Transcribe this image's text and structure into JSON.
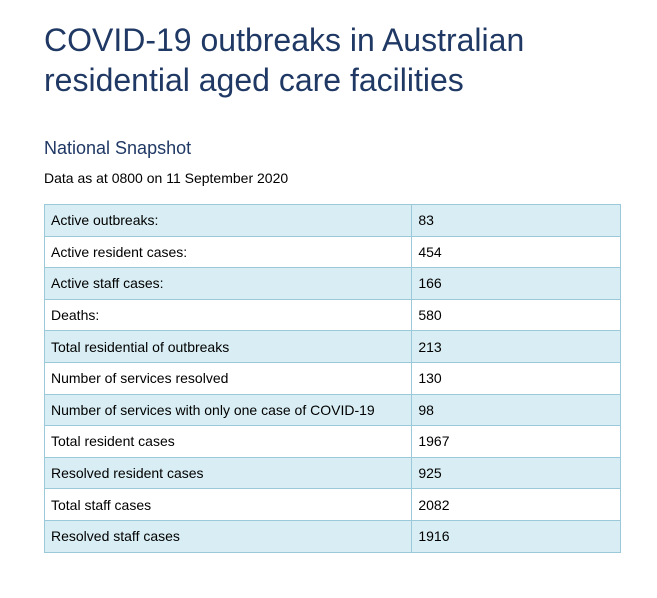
{
  "title": "COVID-19 outbreaks in Australian residential aged care facilities",
  "subtitle": "National Snapshot",
  "as_of": "Data as at 0800 on 11 September 2020",
  "rows": [
    {
      "label": "Active outbreaks:",
      "value": "83"
    },
    {
      "label": "Active resident cases:",
      "value": "454"
    },
    {
      "label": "Active staff cases:",
      "value": "166"
    },
    {
      "label": "Deaths:",
      "value": "580"
    },
    {
      "label": "Total residential of outbreaks",
      "value": "213"
    },
    {
      "label": "Number of services resolved",
      "value": "130"
    },
    {
      "label": "Number of services with only one case of COVID-19",
      "value": "98"
    },
    {
      "label": "Total resident cases",
      "value": "1967"
    },
    {
      "label": "Resolved resident cases",
      "value": "925"
    },
    {
      "label": "Total staff cases",
      "value": "2082"
    },
    {
      "label": "Resolved staff cases",
      "value": "1916"
    }
  ]
}
